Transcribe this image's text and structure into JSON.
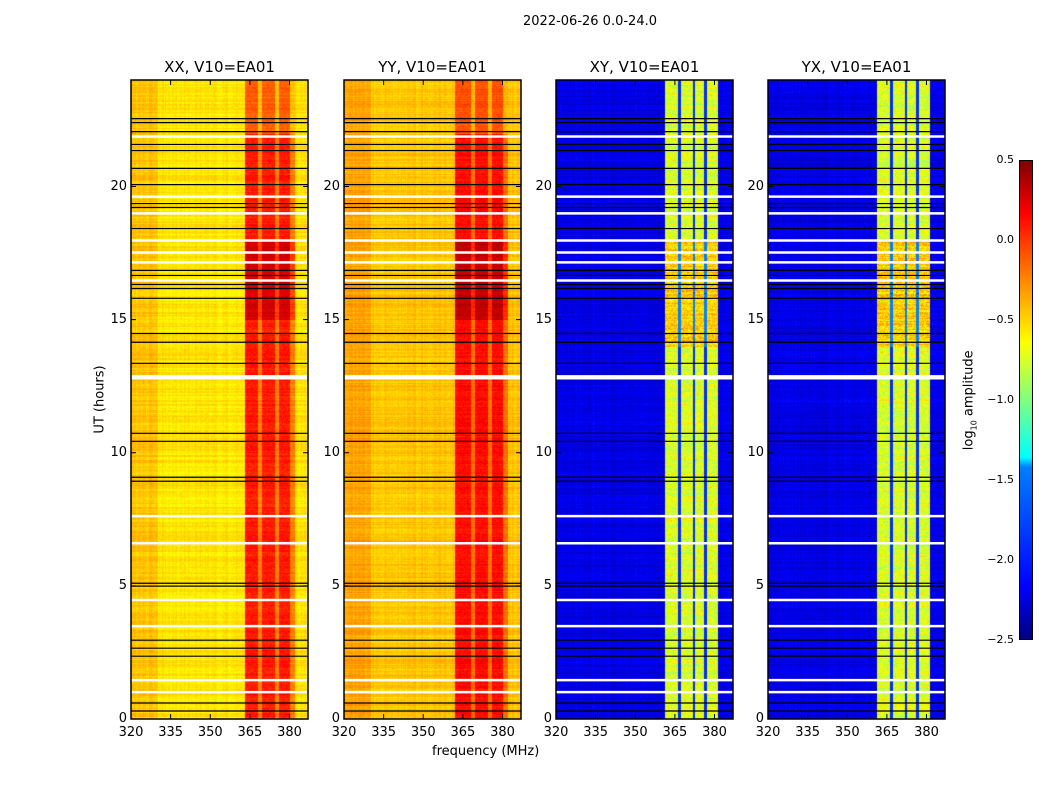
{
  "chart_data": {
    "type": "heatmap",
    "title": "2022-06-26 0.0-24.0",
    "xlabel": "frequency (MHz)",
    "ylabel": "UT (hours)",
    "xlim": [
      320,
      387
    ],
    "ylim": [
      0,
      24
    ],
    "xticks": [
      "320",
      "335",
      "350",
      "365",
      "380"
    ],
    "yticks": [
      "0",
      "5",
      "10",
      "15",
      "20"
    ],
    "colormap": "jet",
    "colorbar": {
      "label_main": "log",
      "label_sub": "10",
      "label_rest": " amplitude",
      "range": [
        -2.5,
        0.5
      ],
      "ticks": [
        "0.5",
        "0.0",
        "−0.5",
        "−1.0",
        "−1.5",
        "−2.0",
        "−2.5"
      ]
    },
    "panels": [
      {
        "title": "XX, V10=EA01",
        "pol": "XX",
        "background_level": -0.55,
        "band_mhz": [
          363,
          382
        ],
        "band_level": 0.05
      },
      {
        "title": "YY, V10=EA01",
        "pol": "YY",
        "background_level": -0.45,
        "band_mhz": [
          362,
          382
        ],
        "band_level": 0.1
      },
      {
        "title": "XY, V10=EA01",
        "pol": "XY",
        "background_level": -2.2,
        "band_mhz": [
          361,
          381
        ],
        "band_level": -0.8
      },
      {
        "title": "YX, V10=EA01",
        "pol": "YX",
        "background_level": -2.2,
        "band_mhz": [
          361,
          381
        ],
        "band_level": -0.8
      }
    ],
    "flagged_black_hours": [
      22.55,
      22.4,
      22.06,
      21.58,
      21.35,
      20.68,
      20.07,
      19.36,
      19.21,
      18.42,
      16.85,
      16.66,
      16.32,
      16.17,
      15.8,
      14.48,
      14.15,
      13.36,
      10.73,
      10.43,
      9.08,
      8.93,
      5.1,
      4.99,
      2.96,
      2.66,
      2.36,
      0.6,
      0.3
    ],
    "flagged_white_hours": [
      21.88,
      19.62,
      18.99,
      17.97,
      17.52,
      17.15,
      16.47,
      12.87,
      12.8,
      7.62,
      6.6,
      4.47,
      3.49,
      1.46,
      1.01
    ]
  }
}
